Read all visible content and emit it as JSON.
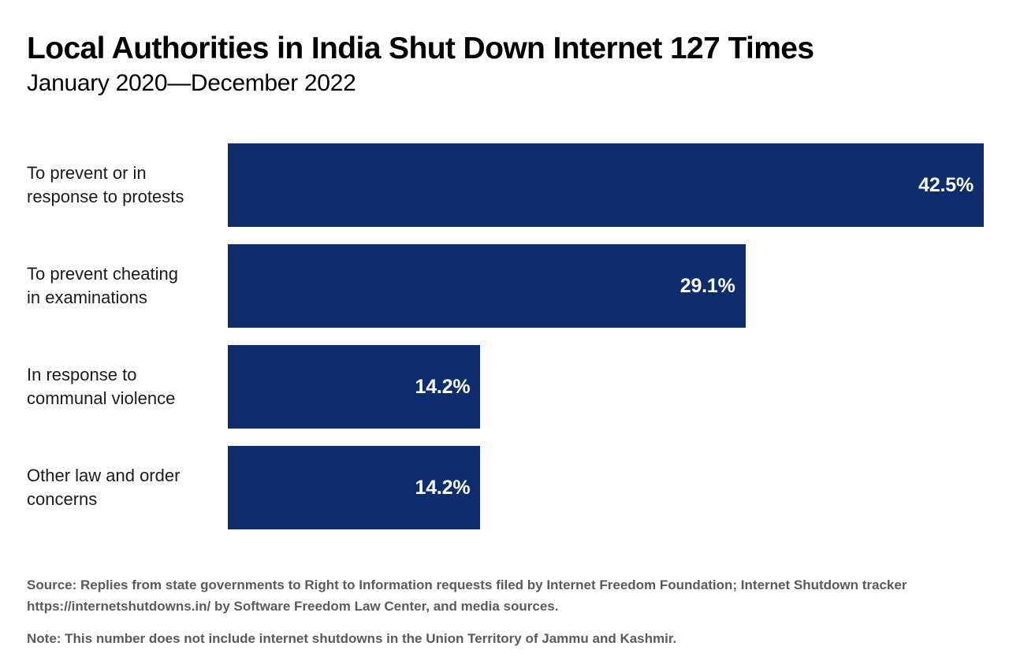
{
  "chart_data": {
    "type": "bar",
    "orientation": "horizontal",
    "title": "Local Authorities in India Shut Down Internet 127 Times",
    "subtitle": "January 2020—December 2022",
    "categories": [
      "To prevent or in\nresponse to protests",
      "To prevent cheating\nin examinations",
      "In response to\ncommunal violence",
      "Other law and order\nconcerns"
    ],
    "values": [
      42.5,
      29.1,
      14.2,
      14.2
    ],
    "value_labels": [
      "42.5%",
      "29.1%",
      "14.2%",
      "14.2%"
    ],
    "xlim": [
      0,
      42.5
    ],
    "grid": false,
    "legend": false,
    "bar_color": "#0d2d6c",
    "value_label_color": "#ffffff"
  },
  "footer": {
    "source": "Source: Replies from state governments to Right to Information requests filed by Internet Freedom Foundation; Internet Shutdown tracker\nhttps://internetshutdowns.in/ by Software Freedom Law Center, and media sources.",
    "note": "Note: This number does not include internet shutdowns in the Union Territory of Jammu and Kashmir."
  },
  "colors": {
    "background": "#ffffff",
    "bar": "#0d2d6c",
    "title_text": "#000000",
    "body_text": "#1a1a1a",
    "muted_text": "#5a5a5a",
    "value_text": "#ffffff"
  }
}
